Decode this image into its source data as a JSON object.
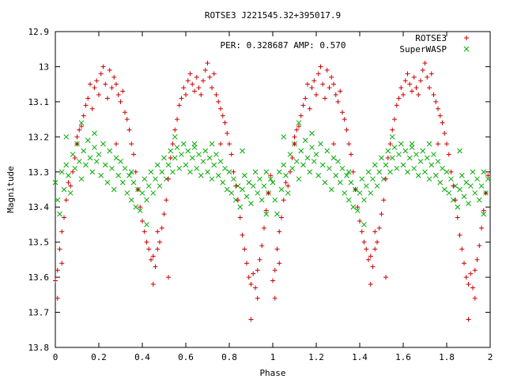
{
  "chart_data": {
    "type": "scatter",
    "title": "ROTSE3 J221545.32+395017.9",
    "annotation": "PER: 0.328687 AMP: 0.570",
    "xlabel": "Phase",
    "ylabel": "Magnitude",
    "xlim": [
      0,
      2
    ],
    "ylim": [
      13.8,
      12.9
    ],
    "y_inverted": true,
    "grid": false,
    "legend_position": "top-right",
    "xticks": [
      "0",
      "0.2",
      "0.4",
      "0.6",
      "0.8",
      "1",
      "1.2",
      "1.4",
      "1.6",
      "1.8",
      "2"
    ],
    "yticks": [
      "12.9",
      "13",
      "13.1",
      "13.2",
      "13.3",
      "13.4",
      "13.5",
      "13.6",
      "13.7",
      "13.8"
    ],
    "series": [
      {
        "name": "ROTSE3",
        "marker": "plus",
        "color": "#cc0000",
        "period_phase": 1.0,
        "points": [
          [
            0.0,
            13.61
          ],
          [
            0.01,
            13.58
          ],
          [
            0.01,
            13.66
          ],
          [
            0.02,
            13.52
          ],
          [
            0.03,
            13.47
          ],
          [
            0.03,
            13.56
          ],
          [
            0.04,
            13.43
          ],
          [
            0.05,
            13.38
          ],
          [
            0.06,
            13.33
          ],
          [
            0.07,
            13.34
          ],
          [
            0.08,
            13.3
          ],
          [
            0.09,
            13.26
          ],
          [
            0.1,
            13.22
          ],
          [
            0.11,
            13.18
          ],
          [
            0.12,
            13.17
          ],
          [
            0.13,
            13.14
          ],
          [
            0.14,
            13.11
          ],
          [
            0.15,
            13.09
          ],
          [
            0.16,
            13.05
          ],
          [
            0.17,
            13.12
          ],
          [
            0.18,
            13.06
          ],
          [
            0.19,
            13.04
          ],
          [
            0.2,
            13.08
          ],
          [
            0.21,
            13.02
          ],
          [
            0.22,
            13.0
          ],
          [
            0.23,
            13.05
          ],
          [
            0.24,
            13.09
          ],
          [
            0.25,
            13.01
          ],
          [
            0.26,
            13.06
          ],
          [
            0.27,
            13.03
          ],
          [
            0.28,
            13.05
          ],
          [
            0.29,
            13.08
          ],
          [
            0.3,
            13.1
          ],
          [
            0.31,
            13.07
          ],
          [
            0.32,
            13.13
          ],
          [
            0.33,
            13.15
          ],
          [
            0.34,
            13.18
          ],
          [
            0.35,
            13.22
          ],
          [
            0.36,
            13.25
          ],
          [
            0.37,
            13.3
          ],
          [
            0.38,
            13.35
          ],
          [
            0.39,
            13.4
          ],
          [
            0.4,
            13.44
          ],
          [
            0.41,
            13.47
          ],
          [
            0.42,
            13.5
          ],
          [
            0.43,
            13.52
          ],
          [
            0.44,
            13.55
          ],
          [
            0.45,
            13.54
          ],
          [
            0.46,
            13.57
          ],
          [
            0.47,
            13.52
          ],
          [
            0.48,
            13.5
          ],
          [
            0.49,
            13.46
          ],
          [
            0.5,
            13.42
          ],
          [
            0.51,
            13.38
          ],
          [
            0.52,
            13.32
          ],
          [
            0.53,
            13.26
          ],
          [
            0.54,
            13.22
          ],
          [
            0.55,
            13.18
          ],
          [
            0.56,
            13.15
          ],
          [
            0.57,
            13.11
          ],
          [
            0.58,
            13.09
          ],
          [
            0.59,
            13.06
          ],
          [
            0.6,
            13.08
          ],
          [
            0.61,
            13.04
          ],
          [
            0.62,
            13.02
          ],
          [
            0.63,
            13.05
          ],
          [
            0.64,
            13.07
          ],
          [
            0.65,
            13.03
          ],
          [
            0.66,
            13.06
          ],
          [
            0.67,
            13.08
          ],
          [
            0.68,
            13.04
          ],
          [
            0.69,
            13.01
          ],
          [
            0.7,
            12.99
          ],
          [
            0.71,
            13.03
          ],
          [
            0.72,
            13.06
          ],
          [
            0.73,
            13.02
          ],
          [
            0.74,
            13.08
          ],
          [
            0.75,
            13.1
          ],
          [
            0.76,
            13.12
          ],
          [
            0.77,
            13.14
          ],
          [
            0.78,
            13.16
          ],
          [
            0.79,
            13.19
          ],
          [
            0.8,
            13.22
          ],
          [
            0.81,
            13.25
          ],
          [
            0.82,
            13.3
          ],
          [
            0.83,
            13.34
          ],
          [
            0.84,
            13.38
          ],
          [
            0.85,
            13.43
          ],
          [
            0.86,
            13.48
          ],
          [
            0.87,
            13.52
          ],
          [
            0.88,
            13.56
          ],
          [
            0.89,
            13.6
          ],
          [
            0.9,
            13.62
          ],
          [
            0.91,
            13.59
          ],
          [
            0.92,
            13.63
          ],
          [
            0.93,
            13.58
          ],
          [
            0.94,
            13.55
          ],
          [
            0.95,
            13.51
          ],
          [
            0.96,
            13.46
          ],
          [
            0.97,
            13.41
          ],
          [
            0.98,
            13.36
          ],
          [
            0.99,
            13.31
          ],
          [
            0.9,
            13.72
          ],
          [
            0.93,
            13.66
          ],
          [
            0.28,
            13.22
          ],
          [
            0.45,
            13.62
          ],
          [
            0.52,
            13.6
          ],
          [
            0.76,
            13.22
          ],
          [
            0.1,
            13.2
          ],
          [
            0.47,
            13.47
          ]
        ]
      },
      {
        "name": "SuperWASP",
        "marker": "cross",
        "color": "#00aa00",
        "period_phase": 1.0,
        "points": [
          [
            0.0,
            13.33
          ],
          [
            0.01,
            13.38
          ],
          [
            0.02,
            13.42
          ],
          [
            0.03,
            13.3
          ],
          [
            0.04,
            13.35
          ],
          [
            0.05,
            13.28
          ],
          [
            0.06,
            13.31
          ],
          [
            0.07,
            13.36
          ],
          [
            0.08,
            13.25
          ],
          [
            0.09,
            13.29
          ],
          [
            0.1,
            13.22
          ],
          [
            0.11,
            13.27
          ],
          [
            0.12,
            13.32
          ],
          [
            0.13,
            13.24
          ],
          [
            0.14,
            13.28
          ],
          [
            0.15,
            13.21
          ],
          [
            0.16,
            13.26
          ],
          [
            0.17,
            13.3
          ],
          [
            0.18,
            13.23
          ],
          [
            0.19,
            13.27
          ],
          [
            0.2,
            13.25
          ],
          [
            0.21,
            13.31
          ],
          [
            0.22,
            13.22
          ],
          [
            0.23,
            13.28
          ],
          [
            0.24,
            13.33
          ],
          [
            0.25,
            13.24
          ],
          [
            0.26,
            13.29
          ],
          [
            0.27,
            13.35
          ],
          [
            0.28,
            13.26
          ],
          [
            0.29,
            13.31
          ],
          [
            0.3,
            13.27
          ],
          [
            0.31,
            13.33
          ],
          [
            0.32,
            13.29
          ],
          [
            0.33,
            13.36
          ],
          [
            0.34,
            13.31
          ],
          [
            0.35,
            13.38
          ],
          [
            0.36,
            13.33
          ],
          [
            0.37,
            13.4
          ],
          [
            0.38,
            13.35
          ],
          [
            0.39,
            13.41
          ],
          [
            0.4,
            13.36
          ],
          [
            0.41,
            13.32
          ],
          [
            0.42,
            13.38
          ],
          [
            0.43,
            13.34
          ],
          [
            0.44,
            13.3
          ],
          [
            0.45,
            13.36
          ],
          [
            0.46,
            13.32
          ],
          [
            0.47,
            13.28
          ],
          [
            0.48,
            13.34
          ],
          [
            0.49,
            13.3
          ],
          [
            0.5,
            13.26
          ],
          [
            0.51,
            13.32
          ],
          [
            0.52,
            13.28
          ],
          [
            0.53,
            13.24
          ],
          [
            0.54,
            13.3
          ],
          [
            0.55,
            13.26
          ],
          [
            0.56,
            13.23
          ],
          [
            0.57,
            13.29
          ],
          [
            0.58,
            13.25
          ],
          [
            0.59,
            13.22
          ],
          [
            0.6,
            13.28
          ],
          [
            0.61,
            13.24
          ],
          [
            0.62,
            13.3
          ],
          [
            0.63,
            13.26
          ],
          [
            0.64,
            13.23
          ],
          [
            0.65,
            13.29
          ],
          [
            0.66,
            13.25
          ],
          [
            0.67,
            13.31
          ],
          [
            0.68,
            13.27
          ],
          [
            0.69,
            13.24
          ],
          [
            0.7,
            13.3
          ],
          [
            0.71,
            13.26
          ],
          [
            0.72,
            13.32
          ],
          [
            0.73,
            13.28
          ],
          [
            0.74,
            13.25
          ],
          [
            0.75,
            13.31
          ],
          [
            0.76,
            13.27
          ],
          [
            0.77,
            13.33
          ],
          [
            0.78,
            13.29
          ],
          [
            0.79,
            13.35
          ],
          [
            0.8,
            13.3
          ],
          [
            0.81,
            13.36
          ],
          [
            0.82,
            13.32
          ],
          [
            0.83,
            13.38
          ],
          [
            0.84,
            13.34
          ],
          [
            0.85,
            13.4
          ],
          [
            0.86,
            13.35
          ],
          [
            0.87,
            13.31
          ],
          [
            0.88,
            13.37
          ],
          [
            0.89,
            13.33
          ],
          [
            0.9,
            13.39
          ],
          [
            0.91,
            13.34
          ],
          [
            0.92,
            13.3
          ],
          [
            0.93,
            13.36
          ],
          [
            0.94,
            13.32
          ],
          [
            0.95,
            13.38
          ],
          [
            0.96,
            13.34
          ],
          [
            0.97,
            13.3
          ],
          [
            0.98,
            13.36
          ],
          [
            0.99,
            13.32
          ],
          [
            0.05,
            13.2
          ],
          [
            0.12,
            13.16
          ],
          [
            0.18,
            13.19
          ],
          [
            0.35,
            13.3
          ],
          [
            0.42,
            13.45
          ],
          [
            0.55,
            13.2
          ],
          [
            0.64,
            13.22
          ],
          [
            0.72,
            13.22
          ],
          [
            0.86,
            13.24
          ],
          [
            0.97,
            13.42
          ]
        ]
      }
    ]
  }
}
